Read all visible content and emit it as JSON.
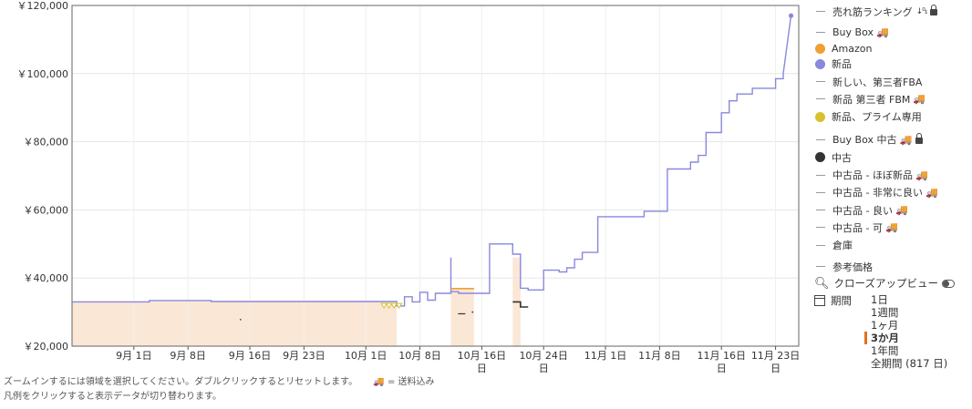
{
  "chart_data": {
    "type": "line",
    "x_labels": [
      "9月 1日",
      "9月 8日",
      "9月 16日",
      "9月 23日",
      "10月 1日",
      "10月 8日",
      "10月 16日",
      "10月 24日",
      "11月 1日",
      "11月 8日",
      "11月 16日",
      "11月 23日"
    ],
    "x_label_wrap": [
      "",
      "",
      "",
      "",
      "",
      "",
      "日",
      "日",
      "",
      "",
      "日",
      "日"
    ],
    "y_ticks": [
      "￥120,000",
      "￥100,000",
      "￥80,000",
      "￥60,000",
      "￥40,000",
      "￥20,000"
    ],
    "ylim": [
      20000,
      120000
    ],
    "xlim": [
      "2024-08-24",
      "2024-11-26"
    ],
    "grid": true,
    "series": [
      {
        "name": "新品",
        "color": "#8888dd",
        "points": [
          [
            "2024-08-24",
            33000
          ],
          [
            "2024-09-03",
            33000
          ],
          [
            "2024-09-03",
            33400
          ],
          [
            "2024-09-11",
            33400
          ],
          [
            "2024-09-11",
            33100
          ],
          [
            "2024-10-05",
            33100
          ],
          [
            "2024-10-05",
            31800
          ],
          [
            "2024-10-06",
            31800
          ],
          [
            "2024-10-06",
            34500
          ],
          [
            "2024-10-07",
            34500
          ],
          [
            "2024-10-07",
            33000
          ],
          [
            "2024-10-08",
            33000
          ],
          [
            "2024-10-08",
            35800
          ],
          [
            "2024-10-09",
            35800
          ],
          [
            "2024-10-09",
            33500
          ],
          [
            "2024-10-10",
            33500
          ],
          [
            "2024-10-10",
            35500
          ],
          [
            "2024-10-12",
            35500
          ],
          [
            "2024-10-12",
            46000
          ],
          [
            "2024-10-12",
            36000
          ],
          [
            "2024-10-13",
            36000
          ],
          [
            "2024-10-13",
            35500
          ],
          [
            "2024-10-17",
            35500
          ],
          [
            "2024-10-17",
            50000
          ],
          [
            "2024-10-20",
            50000
          ],
          [
            "2024-10-20",
            47000
          ],
          [
            "2024-10-21",
            47000
          ],
          [
            "2024-10-21",
            37000
          ],
          [
            "2024-10-22",
            37000
          ],
          [
            "2024-10-22",
            36500
          ],
          [
            "2024-10-24",
            36500
          ],
          [
            "2024-10-24",
            42300
          ],
          [
            "2024-10-26",
            42300
          ],
          [
            "2024-10-26",
            41800
          ],
          [
            "2024-10-27",
            41800
          ],
          [
            "2024-10-27",
            43000
          ],
          [
            "2024-10-28",
            43000
          ],
          [
            "2024-10-28",
            45500
          ],
          [
            "2024-10-29",
            45500
          ],
          [
            "2024-10-29",
            47500
          ],
          [
            "2024-10-31",
            47500
          ],
          [
            "2024-10-31",
            58000
          ],
          [
            "2024-11-06",
            58000
          ],
          [
            "2024-11-06",
            59600
          ],
          [
            "2024-11-09",
            59600
          ],
          [
            "2024-11-09",
            72000
          ],
          [
            "2024-11-12",
            72000
          ],
          [
            "2024-11-12",
            74000
          ],
          [
            "2024-11-13",
            74000
          ],
          [
            "2024-11-13",
            76000
          ],
          [
            "2024-11-14",
            76000
          ],
          [
            "2024-11-14",
            82700
          ],
          [
            "2024-11-16",
            82700
          ],
          [
            "2024-11-16",
            88500
          ],
          [
            "2024-11-17",
            88500
          ],
          [
            "2024-11-17",
            92000
          ],
          [
            "2024-11-18",
            92000
          ],
          [
            "2024-11-18",
            94000
          ],
          [
            "2024-11-20",
            94000
          ],
          [
            "2024-11-20",
            95700
          ],
          [
            "2024-11-23",
            95700
          ],
          [
            "2024-11-23",
            98500
          ],
          [
            "2024-11-24",
            98500
          ],
          [
            "2024-11-24",
            100000
          ],
          [
            "2024-11-25",
            117000
          ]
        ]
      },
      {
        "name": "Amazon",
        "color": "#f0a030",
        "points": [
          [
            "2024-10-12",
            36900
          ],
          [
            "2024-10-15",
            36900
          ]
        ]
      },
      {
        "name": "中古",
        "color": "#333333",
        "points": [
          [
            "2024-10-20",
            33000
          ],
          [
            "2024-10-21",
            33000
          ],
          [
            "2024-10-21",
            31500
          ],
          [
            "2024-10-22",
            31500
          ]
        ]
      }
    ]
  },
  "legend": {
    "sales_rank": "売れ筋ランキング",
    "sort_glyph": "↓⁰₁",
    "buybox": "Buy Box",
    "amazon": "Amazon",
    "new": "新品",
    "new_3p_fba": "新しい、第三者FBA",
    "new_3p_fbm": "新品 第三者 FBM",
    "new_prime": "新品、プライム専用",
    "buybox_used": "Buy Box 中古",
    "used": "中古",
    "used_like_new": "中古品 - ほぼ新品",
    "used_very_good": "中古品 - 非常に良い",
    "used_good": "中古品 - 良い",
    "used_acceptable": "中古品 - 可",
    "warehouse": "倉庫",
    "list_price": "参考価格",
    "truck_icon": "🚚"
  },
  "colors": {
    "amazon": "#f0a030",
    "new": "#8888dd",
    "new_prime": "#d8c030",
    "used": "#333333",
    "fill": "#fbe7d6",
    "period_accent": "#e07020"
  },
  "controls": {
    "closeup": "クローズアップビュー",
    "period_label": "期間",
    "periods": [
      "1日",
      "1週間",
      "1ヶ月",
      "3か月",
      "1年間",
      "全期間 (817 日)"
    ],
    "selected_period": "3か月"
  },
  "notes": {
    "zoom": "ズームインするには領域を選択してください。ダブルクリックするとリセットします。",
    "shipping": "= 送料込み",
    "legend_click": "凡例をクリックすると表示データが切り替わります。"
  }
}
